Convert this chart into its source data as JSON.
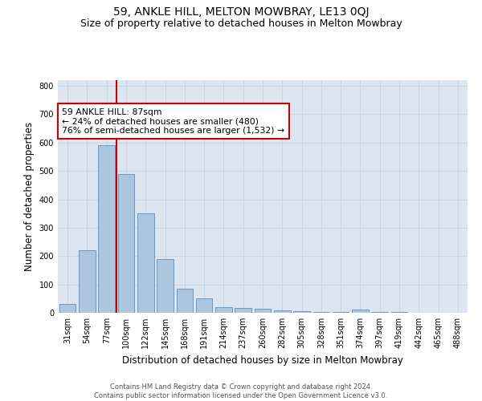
{
  "title": "59, ANKLE HILL, MELTON MOWBRAY, LE13 0QJ",
  "subtitle": "Size of property relative to detached houses in Melton Mowbray",
  "xlabel": "Distribution of detached houses by size in Melton Mowbray",
  "ylabel": "Number of detached properties",
  "bar_values": [
    30,
    220,
    590,
    490,
    350,
    190,
    85,
    52,
    20,
    17,
    15,
    8,
    5,
    3,
    2,
    10,
    2,
    2,
    1,
    1,
    1
  ],
  "bin_labels": [
    "31sqm",
    "54sqm",
    "77sqm",
    "100sqm",
    "122sqm",
    "145sqm",
    "168sqm",
    "191sqm",
    "214sqm",
    "237sqm",
    "260sqm",
    "282sqm",
    "305sqm",
    "328sqm",
    "351sqm",
    "374sqm",
    "397sqm",
    "419sqm",
    "442sqm",
    "465sqm",
    "488sqm"
  ],
  "bar_color": "#adc6e0",
  "bar_edge_color": "#6699cc",
  "vline_x_index": 2,
  "vline_color": "#cc0000",
  "annotation_text": "59 ANKLE HILL: 87sqm\n← 24% of detached houses are smaller (480)\n76% of semi-detached houses are larger (1,532) →",
  "annotation_box_color": "#ffffff",
  "annotation_box_edge": "#cc0000",
  "ylim": [
    0,
    820
  ],
  "yticks": [
    0,
    100,
    200,
    300,
    400,
    500,
    600,
    700,
    800
  ],
  "grid_color": "#c8d4e8",
  "background_color": "#dde6f0",
  "footer_line1": "Contains HM Land Registry data © Crown copyright and database right 2024.",
  "footer_line2": "Contains public sector information licensed under the Open Government Licence v3.0.",
  "title_fontsize": 10,
  "subtitle_fontsize": 9
}
